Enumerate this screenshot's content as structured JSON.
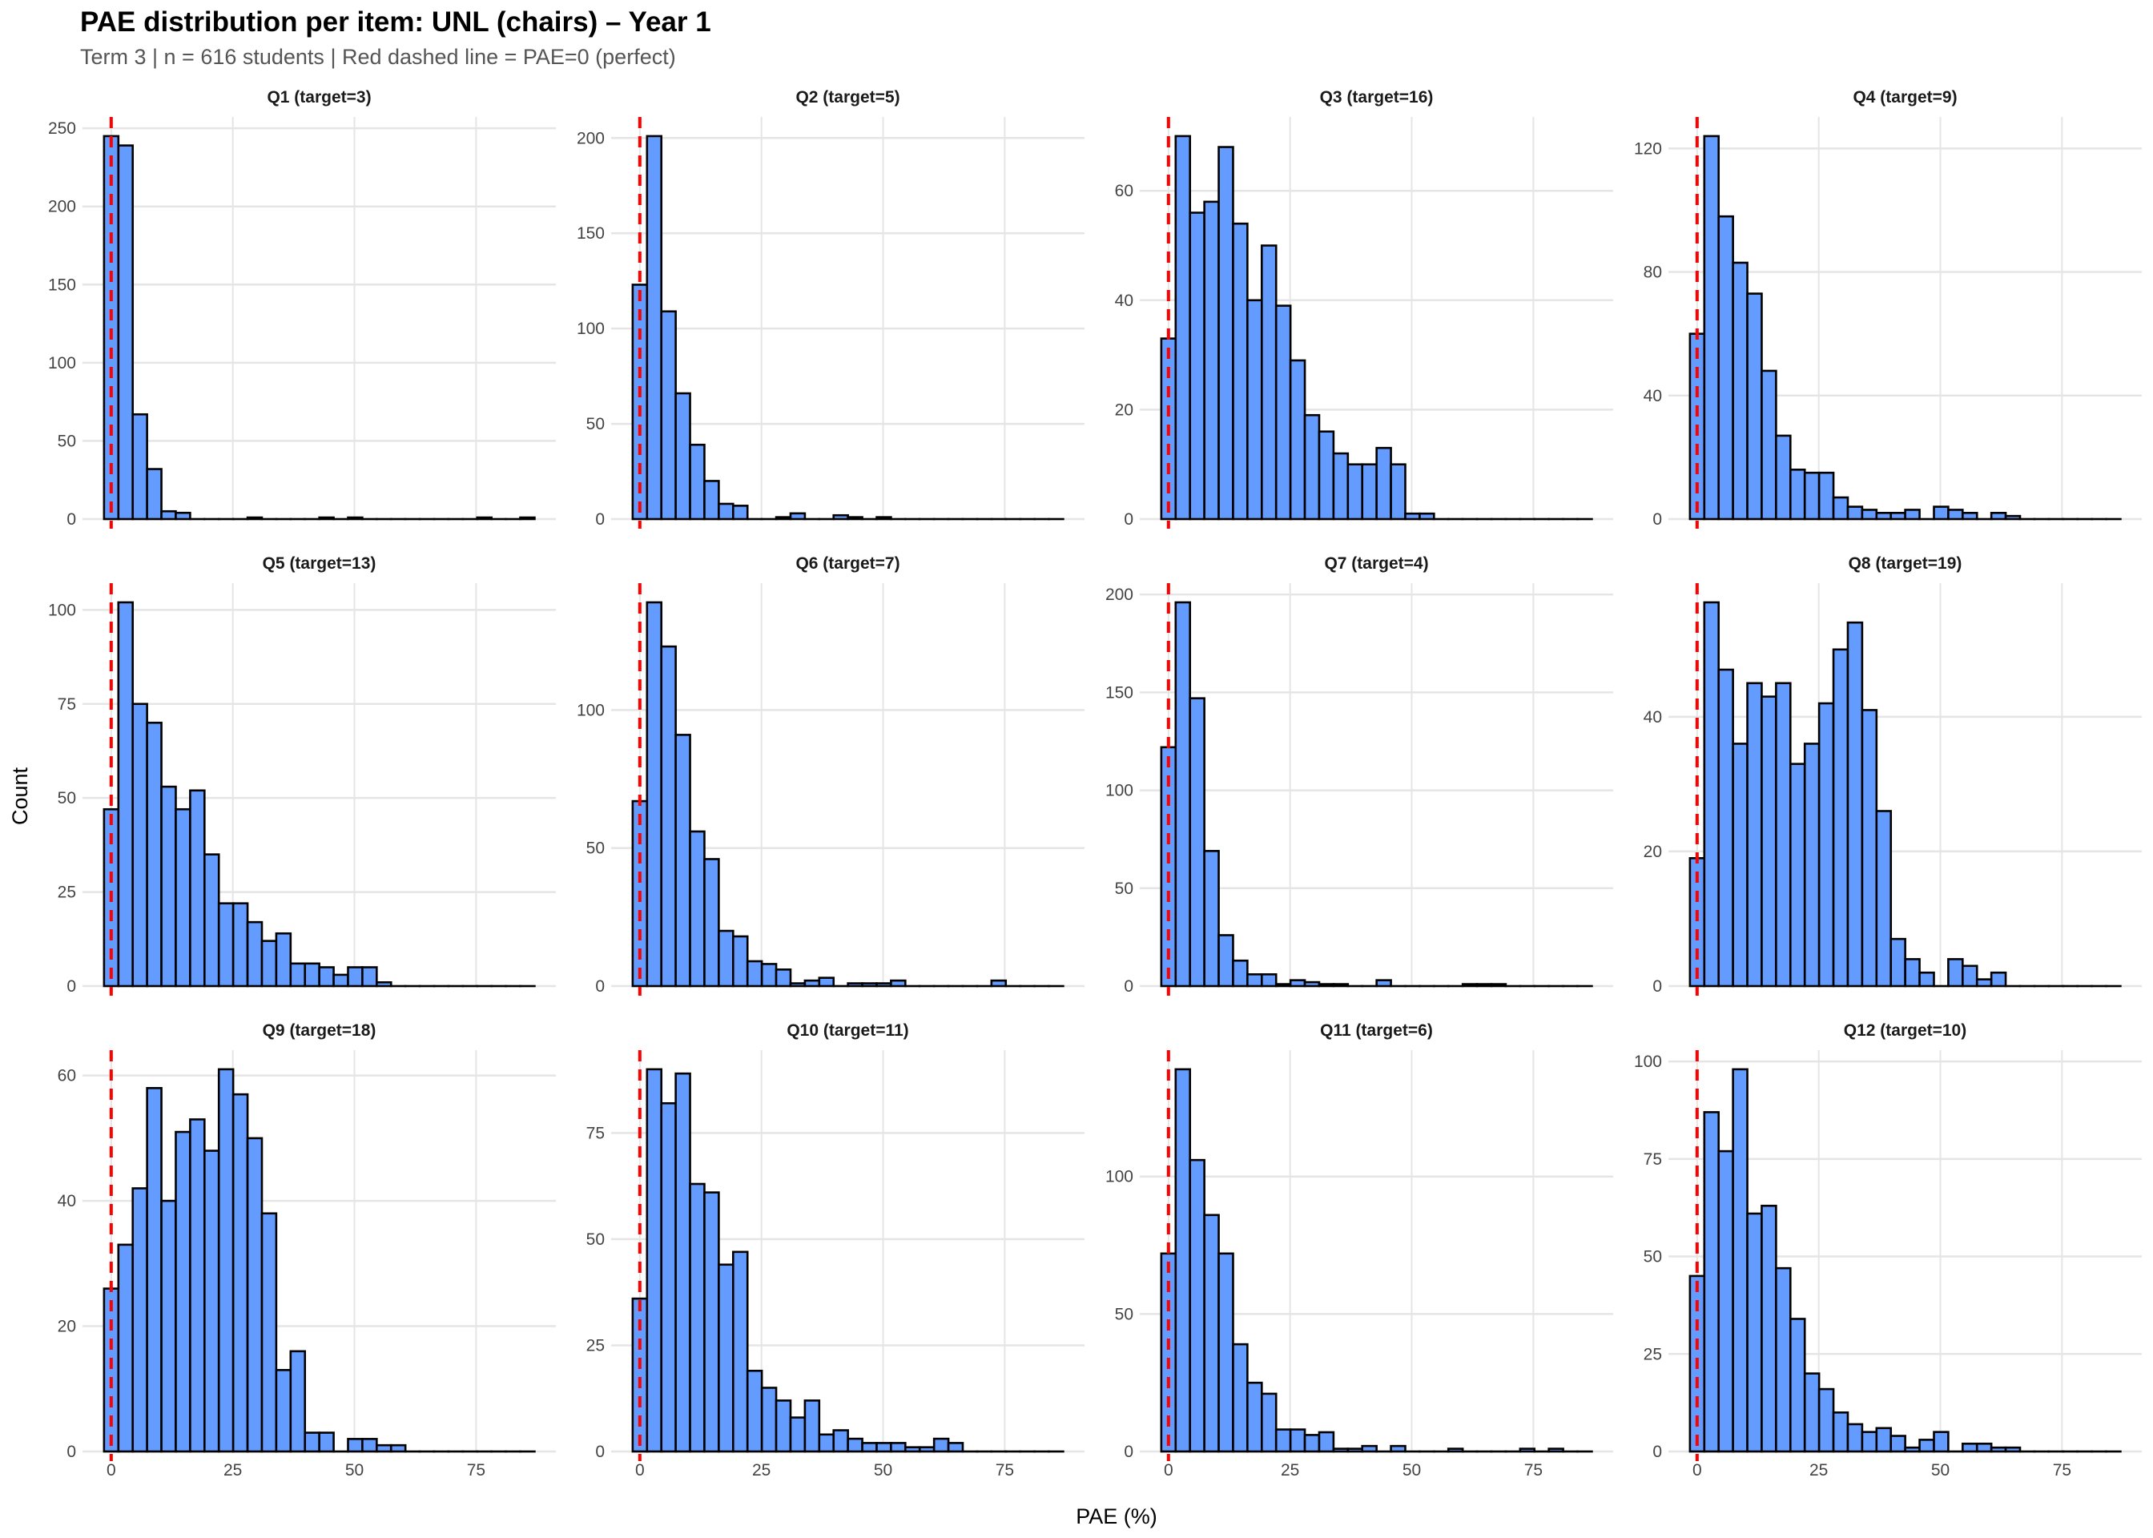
{
  "header": {
    "title": "PAE distribution per item: UNL (chairs) – Year 1",
    "subtitle": "Term 3 | n = 616 students | Red dashed line = PAE=0 (perfect)"
  },
  "colors": {
    "bar_fill": "#649bff",
    "bar_outline": "#000000",
    "ref_line": "#ff0000",
    "grid": "#e5e5e5"
  },
  "chart_data": {
    "type": "bar",
    "subtype": "faceted histogram",
    "xlabel": "PAE (%)",
    "ylabel": "Count",
    "bin_width": 2.95,
    "xlim": [
      -5.9,
      91.4
    ],
    "x_ticks": [
      "0",
      "25",
      "50",
      "75"
    ],
    "x_tick_values": [
      0,
      25,
      50,
      75
    ],
    "reference_line_x": 0,
    "grid": true,
    "panels": [
      {
        "label": "Q1 (target=3)",
        "y_ticks": [
          0,
          50,
          100,
          150,
          200,
          250
        ],
        "counts": [
          245,
          239,
          67,
          32,
          5,
          4,
          0,
          0,
          0,
          0,
          1,
          0,
          0,
          0,
          0,
          1,
          0,
          1,
          0,
          0,
          0,
          0,
          0,
          0,
          0,
          0,
          1,
          0,
          0,
          1
        ]
      },
      {
        "label": "Q2 (target=5)",
        "y_ticks": [
          0,
          50,
          100,
          150,
          200
        ],
        "counts": [
          123,
          201,
          109,
          66,
          39,
          20,
          8,
          7,
          0,
          0,
          1,
          3,
          0,
          0,
          2,
          1,
          0,
          1,
          0,
          0,
          0,
          0,
          0,
          0,
          0,
          0,
          0,
          0,
          0,
          0
        ]
      },
      {
        "label": "Q3 (target=16)",
        "y_ticks": [
          0,
          20,
          40,
          60
        ],
        "counts": [
          33,
          70,
          56,
          58,
          68,
          54,
          40,
          50,
          39,
          29,
          19,
          16,
          12,
          10,
          10,
          13,
          10,
          1,
          1,
          0,
          0,
          0,
          0,
          0,
          0,
          0,
          0,
          0,
          0,
          0
        ]
      },
      {
        "label": "Q4 (target=9)",
        "y_ticks": [
          0,
          40,
          80,
          120
        ],
        "counts": [
          60,
          124,
          98,
          83,
          73,
          48,
          27,
          16,
          15,
          15,
          7,
          4,
          3,
          2,
          2,
          3,
          0,
          4,
          3,
          2,
          0,
          2,
          1,
          0,
          0,
          0,
          0,
          0,
          0,
          0
        ]
      },
      {
        "label": "Q5 (target=13)",
        "y_ticks": [
          0,
          25,
          50,
          75,
          100
        ],
        "counts": [
          47,
          102,
          75,
          70,
          53,
          47,
          52,
          35,
          22,
          22,
          17,
          12,
          14,
          6,
          6,
          5,
          3,
          5,
          5,
          1,
          0,
          0,
          0,
          0,
          0,
          0,
          0,
          0,
          0,
          0
        ]
      },
      {
        "label": "Q6 (target=7)",
        "y_ticks": [
          0,
          50,
          100
        ],
        "counts": [
          67,
          139,
          123,
          91,
          56,
          46,
          20,
          18,
          9,
          8,
          6,
          1,
          2,
          3,
          0,
          1,
          1,
          1,
          2,
          0,
          0,
          0,
          0,
          0,
          0,
          2,
          0,
          0,
          0,
          0
        ]
      },
      {
        "label": "Q7 (target=4)",
        "y_ticks": [
          0,
          50,
          100,
          150,
          200
        ],
        "counts": [
          122,
          196,
          147,
          69,
          26,
          13,
          6,
          6,
          1,
          3,
          2,
          1,
          1,
          0,
          0,
          3,
          0,
          0,
          0,
          0,
          0,
          1,
          1,
          1,
          0,
          0,
          0,
          0,
          0,
          0
        ]
      },
      {
        "label": "Q8 (target=19)",
        "y_ticks": [
          0,
          20,
          40
        ],
        "counts": [
          19,
          57,
          47,
          36,
          45,
          43,
          45,
          33,
          36,
          42,
          50,
          54,
          41,
          26,
          7,
          4,
          2,
          0,
          4,
          3,
          1,
          2,
          0,
          0,
          0,
          0,
          0,
          0,
          0,
          0
        ]
      },
      {
        "label": "Q9 (target=18)",
        "y_ticks": [
          0,
          20,
          40,
          60
        ],
        "counts": [
          26,
          33,
          42,
          58,
          40,
          51,
          53,
          48,
          61,
          57,
          50,
          38,
          13,
          16,
          3,
          3,
          0,
          2,
          2,
          1,
          1,
          0,
          0,
          0,
          0,
          0,
          0,
          0,
          0,
          0
        ]
      },
      {
        "label": "Q10 (target=11)",
        "y_ticks": [
          0,
          25,
          50,
          75
        ],
        "counts": [
          36,
          90,
          82,
          89,
          63,
          61,
          44,
          47,
          19,
          15,
          12,
          8,
          12,
          4,
          5,
          3,
          2,
          2,
          2,
          1,
          1,
          3,
          2,
          0,
          0,
          0,
          0,
          0,
          0,
          0
        ]
      },
      {
        "label": "Q11 (target=6)",
        "y_ticks": [
          0,
          50,
          100
        ],
        "counts": [
          72,
          139,
          106,
          86,
          72,
          39,
          25,
          21,
          8,
          8,
          6,
          7,
          1,
          1,
          2,
          0,
          2,
          0,
          0,
          0,
          1,
          0,
          0,
          0,
          0,
          1,
          0,
          1,
          0,
          0
        ]
      },
      {
        "label": "Q12 (target=10)",
        "y_ticks": [
          0,
          25,
          50,
          75,
          100
        ],
        "counts": [
          45,
          87,
          77,
          98,
          61,
          63,
          47,
          34,
          20,
          16,
          10,
          7,
          5,
          6,
          4,
          1,
          3,
          5,
          0,
          2,
          2,
          1,
          1,
          0,
          0,
          0,
          0,
          0,
          0,
          0
        ]
      }
    ]
  }
}
